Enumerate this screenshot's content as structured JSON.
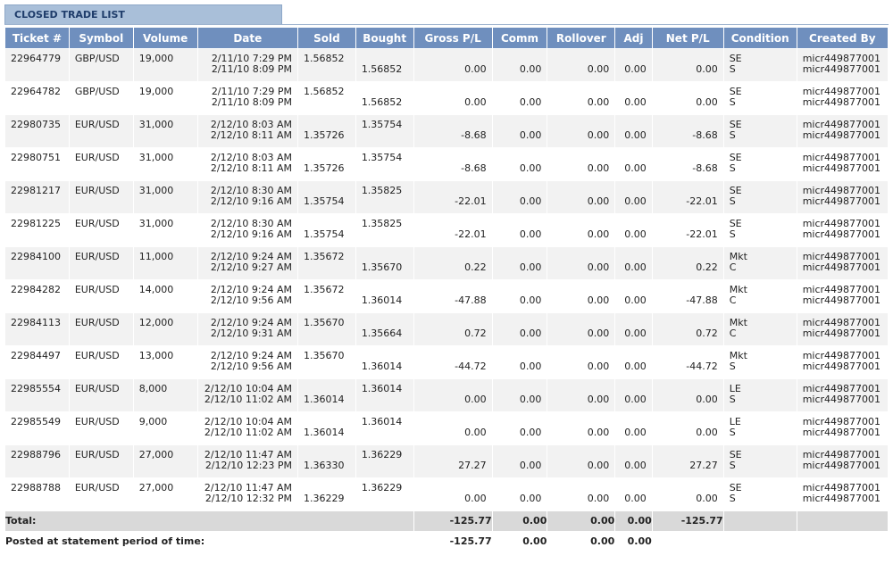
{
  "section_title": "CLOSED TRADE LIST",
  "columns": [
    "Ticket #",
    "Symbol",
    "Volume",
    "Date",
    "Sold",
    "Bought",
    "Gross P/L",
    "Comm",
    "Rollover",
    "Adj",
    "Net P/L",
    "Condition",
    "Created By"
  ],
  "rows": [
    {
      "ticket": "22964779",
      "symbol": "GBP/USD",
      "volume": "19,000",
      "date1": "2/11/10 7:29 PM",
      "date2": "2/11/10 8:09 PM",
      "sold1": "1.56852",
      "sold2": "",
      "bought1": "",
      "bought2": "1.56852",
      "gross": "0.00",
      "comm": "0.00",
      "rollover": "0.00",
      "adj": "0.00",
      "net": "0.00",
      "cond1": "SE",
      "cond2": "S",
      "by1": "micr449877001",
      "by2": "micr449877001"
    },
    {
      "ticket": "22964782",
      "symbol": "GBP/USD",
      "volume": "19,000",
      "date1": "2/11/10 7:29 PM",
      "date2": "2/11/10 8:09 PM",
      "sold1": "1.56852",
      "sold2": "",
      "bought1": "",
      "bought2": "1.56852",
      "gross": "0.00",
      "comm": "0.00",
      "rollover": "0.00",
      "adj": "0.00",
      "net": "0.00",
      "cond1": "SE",
      "cond2": "S",
      "by1": "micr449877001",
      "by2": "micr449877001"
    },
    {
      "ticket": "22980735",
      "symbol": "EUR/USD",
      "volume": "31,000",
      "date1": "2/12/10 8:03 AM",
      "date2": "2/12/10 8:11 AM",
      "sold1": "",
      "sold2": "1.35726",
      "bought1": "1.35754",
      "bought2": "",
      "gross": "-8.68",
      "comm": "0.00",
      "rollover": "0.00",
      "adj": "0.00",
      "net": "-8.68",
      "cond1": "SE",
      "cond2": "S",
      "by1": "micr449877001",
      "by2": "micr449877001"
    },
    {
      "ticket": "22980751",
      "symbol": "EUR/USD",
      "volume": "31,000",
      "date1": "2/12/10 8:03 AM",
      "date2": "2/12/10 8:11 AM",
      "sold1": "",
      "sold2": "1.35726",
      "bought1": "1.35754",
      "bought2": "",
      "gross": "-8.68",
      "comm": "0.00",
      "rollover": "0.00",
      "adj": "0.00",
      "net": "-8.68",
      "cond1": "SE",
      "cond2": "S",
      "by1": "micr449877001",
      "by2": "micr449877001"
    },
    {
      "ticket": "22981217",
      "symbol": "EUR/USD",
      "volume": "31,000",
      "date1": "2/12/10 8:30 AM",
      "date2": "2/12/10 9:16 AM",
      "sold1": "",
      "sold2": "1.35754",
      "bought1": "1.35825",
      "bought2": "",
      "gross": "-22.01",
      "comm": "0.00",
      "rollover": "0.00",
      "adj": "0.00",
      "net": "-22.01",
      "cond1": "SE",
      "cond2": "S",
      "by1": "micr449877001",
      "by2": "micr449877001"
    },
    {
      "ticket": "22981225",
      "symbol": "EUR/USD",
      "volume": "31,000",
      "date1": "2/12/10 8:30 AM",
      "date2": "2/12/10 9:16 AM",
      "sold1": "",
      "sold2": "1.35754",
      "bought1": "1.35825",
      "bought2": "",
      "gross": "-22.01",
      "comm": "0.00",
      "rollover": "0.00",
      "adj": "0.00",
      "net": "-22.01",
      "cond1": "SE",
      "cond2": "S",
      "by1": "micr449877001",
      "by2": "micr449877001"
    },
    {
      "ticket": "22984100",
      "symbol": "EUR/USD",
      "volume": "11,000",
      "date1": "2/12/10 9:24 AM",
      "date2": "2/12/10 9:27 AM",
      "sold1": "1.35672",
      "sold2": "",
      "bought1": "",
      "bought2": "1.35670",
      "gross": "0.22",
      "comm": "0.00",
      "rollover": "0.00",
      "adj": "0.00",
      "net": "0.22",
      "cond1": "Mkt",
      "cond2": "C",
      "by1": "micr449877001",
      "by2": "micr449877001"
    },
    {
      "ticket": "22984282",
      "symbol": "EUR/USD",
      "volume": "14,000",
      "date1": "2/12/10 9:24 AM",
      "date2": "2/12/10 9:56 AM",
      "sold1": "1.35672",
      "sold2": "",
      "bought1": "",
      "bought2": "1.36014",
      "gross": "-47.88",
      "comm": "0.00",
      "rollover": "0.00",
      "adj": "0.00",
      "net": "-47.88",
      "cond1": "Mkt",
      "cond2": "C",
      "by1": "micr449877001",
      "by2": "micr449877001"
    },
    {
      "ticket": "22984113",
      "symbol": "EUR/USD",
      "volume": "12,000",
      "date1": "2/12/10 9:24 AM",
      "date2": "2/12/10 9:31 AM",
      "sold1": "1.35670",
      "sold2": "",
      "bought1": "",
      "bought2": "1.35664",
      "gross": "0.72",
      "comm": "0.00",
      "rollover": "0.00",
      "adj": "0.00",
      "net": "0.72",
      "cond1": "Mkt",
      "cond2": "C",
      "by1": "micr449877001",
      "by2": "micr449877001"
    },
    {
      "ticket": "22984497",
      "symbol": "EUR/USD",
      "volume": "13,000",
      "date1": "2/12/10 9:24 AM",
      "date2": "2/12/10 9:56 AM",
      "sold1": "1.35670",
      "sold2": "",
      "bought1": "",
      "bought2": "1.36014",
      "gross": "-44.72",
      "comm": "0.00",
      "rollover": "0.00",
      "adj": "0.00",
      "net": "-44.72",
      "cond1": "Mkt",
      "cond2": "S",
      "by1": "micr449877001",
      "by2": "micr449877001"
    },
    {
      "ticket": "22985554",
      "symbol": "EUR/USD",
      "volume": "8,000",
      "date1": "2/12/10 10:04 AM",
      "date2": "2/12/10 11:02 AM",
      "sold1": "",
      "sold2": "1.36014",
      "bought1": "1.36014",
      "bought2": "",
      "gross": "0.00",
      "comm": "0.00",
      "rollover": "0.00",
      "adj": "0.00",
      "net": "0.00",
      "cond1": "LE",
      "cond2": "S",
      "by1": "micr449877001",
      "by2": "micr449877001"
    },
    {
      "ticket": "22985549",
      "symbol": "EUR/USD",
      "volume": "9,000",
      "date1": "2/12/10 10:04 AM",
      "date2": "2/12/10 11:02 AM",
      "sold1": "",
      "sold2": "1.36014",
      "bought1": "1.36014",
      "bought2": "",
      "gross": "0.00",
      "comm": "0.00",
      "rollover": "0.00",
      "adj": "0.00",
      "net": "0.00",
      "cond1": "LE",
      "cond2": "S",
      "by1": "micr449877001",
      "by2": "micr449877001"
    },
    {
      "ticket": "22988796",
      "symbol": "EUR/USD",
      "volume": "27,000",
      "date1": "2/12/10 11:47 AM",
      "date2": "2/12/10 12:23 PM",
      "sold1": "",
      "sold2": "1.36330",
      "bought1": "1.36229",
      "bought2": "",
      "gross": "27.27",
      "comm": "0.00",
      "rollover": "0.00",
      "adj": "0.00",
      "net": "27.27",
      "cond1": "SE",
      "cond2": "S",
      "by1": "micr449877001",
      "by2": "micr449877001"
    },
    {
      "ticket": "22988788",
      "symbol": "EUR/USD",
      "volume": "27,000",
      "date1": "2/12/10 11:47 AM",
      "date2": "2/12/10 12:32 PM",
      "sold1": "",
      "sold2": "1.36229",
      "bought1": "1.36229",
      "bought2": "",
      "gross": "0.00",
      "comm": "0.00",
      "rollover": "0.00",
      "adj": "0.00",
      "net": "0.00",
      "cond1": "SE",
      "cond2": "S",
      "by1": "micr449877001",
      "by2": "micr449877001"
    }
  ],
  "total": {
    "label": "Total:",
    "gross": "-125.77",
    "comm": "0.00",
    "rollover": "0.00",
    "adj": "0.00",
    "net": "-125.77"
  },
  "posted": {
    "label": "Posted at statement period of time:",
    "gross": "-125.77",
    "comm": "0.00",
    "rollover": "0.00",
    "adj": "0.00"
  },
  "colors": {
    "header_bg": "#6f8fbe",
    "title_bg": "#a9bfd9",
    "row_alt": "#f2f2f2",
    "total_bg": "#d9d9d9"
  }
}
